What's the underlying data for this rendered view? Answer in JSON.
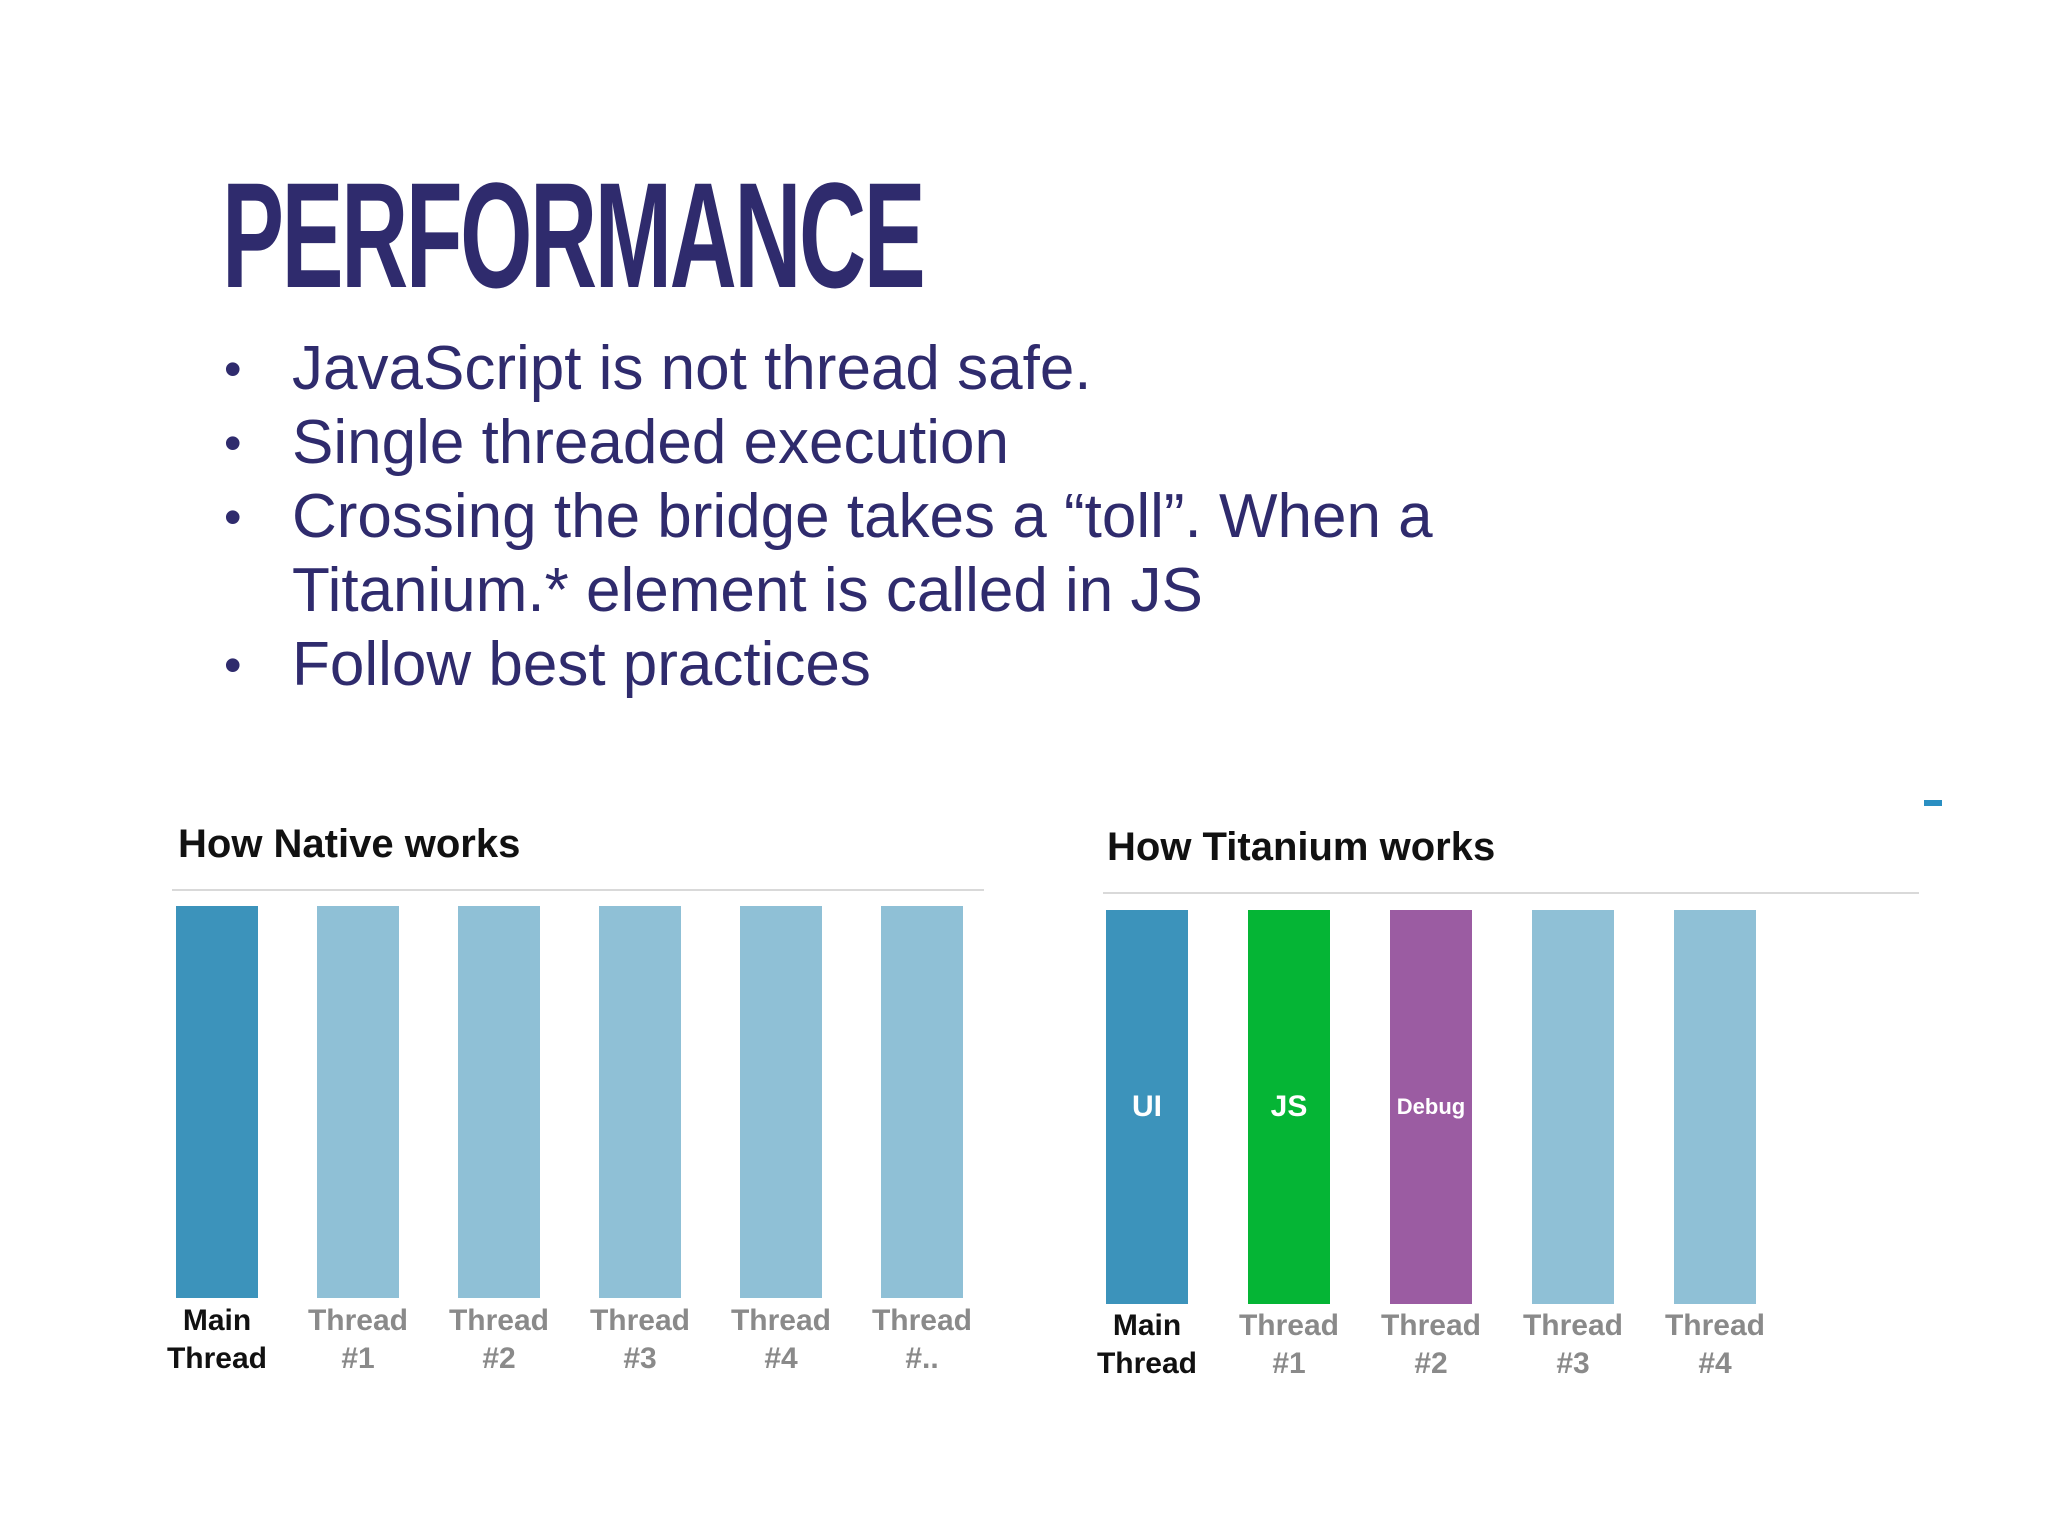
{
  "slide": {
    "title": "PERFORMANCE",
    "bullets": [
      "JavaScript is not thread safe.",
      "Single threaded execution",
      "Crossing the bridge takes a “toll”. When a Titanium.* element is called in JS",
      "Follow best practices"
    ],
    "bullet_glyph": "•",
    "colors": {
      "title": "#2f2b6d",
      "text": "#2f2b6d"
    }
  },
  "native": {
    "title": "How Native works",
    "bars": [
      {
        "line1": "Main",
        "line2": "Thread",
        "color": "#3c93bb",
        "main": true
      },
      {
        "line1": "Thread",
        "line2": "#1",
        "color": "#8fc0d6",
        "main": false
      },
      {
        "line1": "Thread",
        "line2": "#2",
        "color": "#8fc0d6",
        "main": false
      },
      {
        "line1": "Thread",
        "line2": "#3",
        "color": "#8fc0d6",
        "main": false
      },
      {
        "line1": "Thread",
        "line2": "#4",
        "color": "#8fc0d6",
        "main": false
      },
      {
        "line1": "Thread",
        "line2": "#..",
        "color": "#8fc0d6",
        "main": false
      }
    ]
  },
  "titanium": {
    "title": "How Titanium works",
    "bars": [
      {
        "line1": "Main",
        "line2": "Thread",
        "color": "#3c93bb",
        "text": "UI",
        "main": true
      },
      {
        "line1": "Thread",
        "line2": "#1",
        "color": "#05b535",
        "text": "JS",
        "main": false
      },
      {
        "line1": "Thread",
        "line2": "#2",
        "color": "#9b5ca2",
        "text": "Debug",
        "main": false
      },
      {
        "line1": "Thread",
        "line2": "#3",
        "color": "#8fc0d6",
        "text": "",
        "main": false
      },
      {
        "line1": "Thread",
        "line2": "#4",
        "color": "#8fc0d6",
        "text": "",
        "main": false
      }
    ]
  }
}
